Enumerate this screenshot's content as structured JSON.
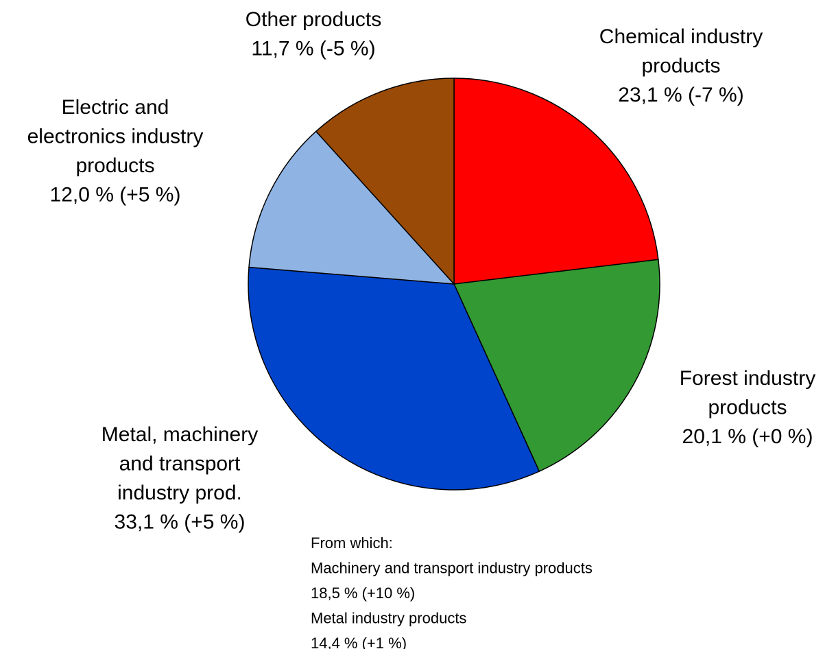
{
  "chart_data": {
    "type": "pie",
    "categories": [
      [
        "Chemical industry",
        "products"
      ],
      [
        "Forest industry",
        "products"
      ],
      [
        "Metal, machinery",
        "and transport",
        "industry prod."
      ],
      [
        "Electric and",
        "electronics industry",
        "products"
      ],
      [
        "Other products"
      ]
    ],
    "values": [
      23.1,
      20.1,
      33.1,
      12.0,
      11.7
    ],
    "value_labels": [
      "23,1 % (-7 %)",
      "20,1 % (+0 %)",
      "33,1 % (+5 %)",
      "12,0 % (+5 %)",
      "11,7 % (-5 %)"
    ],
    "colors": [
      "#ff0000",
      "#339933",
      "#0044cc",
      "#8fb3e3",
      "#994a06"
    ],
    "annotation": [
      "From which:",
      "Machinery and transport industry products",
      "18,5 % (+10 %)",
      "Metal industry products",
      "14,4 % (+1 %)"
    ]
  }
}
